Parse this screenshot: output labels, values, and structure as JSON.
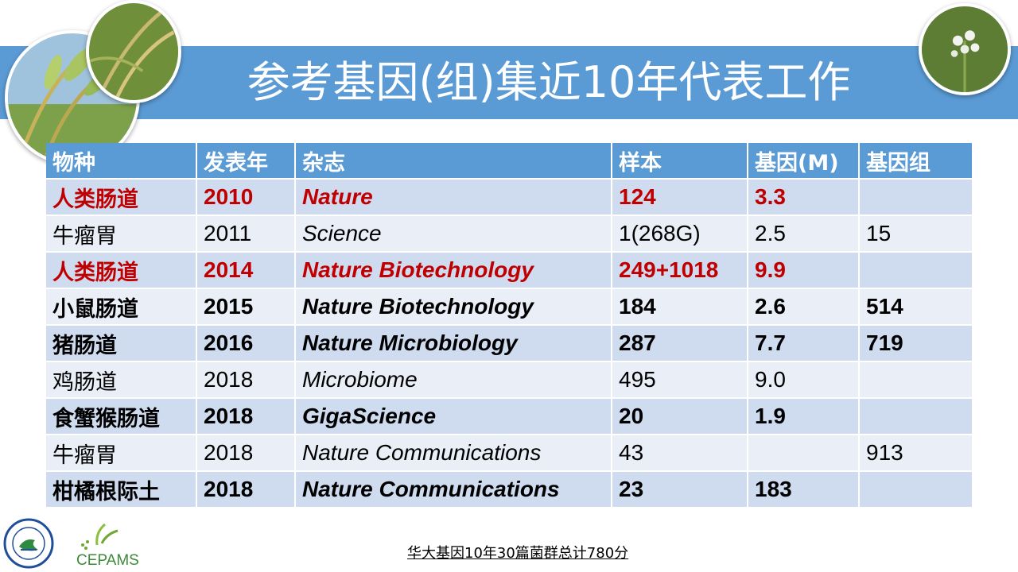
{
  "title": "参考基因(组)集近10年代表工作",
  "table": {
    "headers": [
      "物种",
      "发表年",
      "杂志",
      "样本",
      "基因(M)",
      "基因组"
    ],
    "rows": [
      {
        "species": "人类肠道",
        "year": "2010",
        "journal": "Nature",
        "samples": "124",
        "genes": "3.3",
        "genomes": "",
        "style": "red"
      },
      {
        "species": "牛瘤胃",
        "year": "2011",
        "journal": "Science",
        "samples": "1(268G)",
        "genes": "2.5",
        "genomes": "15",
        "style": "normal"
      },
      {
        "species": "人类肠道",
        "year": "2014",
        "journal": "Nature Biotechnology",
        "samples": "249+1018",
        "genes": "9.9",
        "genomes": "",
        "style": "red"
      },
      {
        "species": "小鼠肠道",
        "year": "2015",
        "journal": "Nature Biotechnology",
        "samples": "184",
        "genes": "2.6",
        "genomes": "514",
        "style": "bold"
      },
      {
        "species": "猪肠道",
        "year": "2016",
        "journal": "Nature Microbiology",
        "samples": "287",
        "genes": "7.7",
        "genomes": "719",
        "style": "bold"
      },
      {
        "species": "鸡肠道",
        "year": "2018",
        "journal": "Microbiome",
        "samples": "495",
        "genes": "9.0",
        "genomes": "",
        "style": "normal"
      },
      {
        "species": "食蟹猴肠道",
        "year": "2018",
        "journal": "GigaScience",
        "samples": "20",
        "genes": "1.9",
        "genomes": "",
        "style": "bold"
      },
      {
        "species": "牛瘤胃",
        "year": "2018",
        "journal": "Nature Communications",
        "samples": "43",
        "genes": "",
        "genomes": "913",
        "style": "normal"
      },
      {
        "species": "柑橘根际土",
        "year": "2018",
        "journal": "Nature Communications",
        "samples": "23",
        "genes": "183",
        "genomes": "",
        "style": "bold"
      }
    ]
  },
  "footnote": "华大基因10年30篇菌群总计780分",
  "logos": {
    "cepams": "CEPAMS"
  },
  "colors": {
    "band": "#5b9bd5",
    "header": "#5b9bd5",
    "row_dark": "#cfdcef",
    "row_light": "#e9eef7",
    "highlight": "#c00000"
  }
}
